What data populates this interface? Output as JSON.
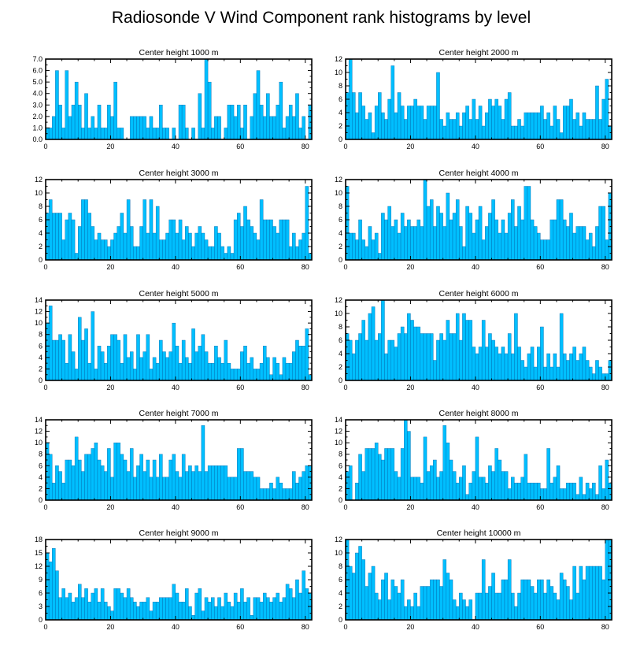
{
  "figure": {
    "title": "Radiosonde V Wind Component rank histograms by level"
  },
  "style": {
    "bar_fill": "#00bfff",
    "bar_edge": "#0066aa",
    "frame": "#000000"
  },
  "chart_data": [
    {
      "type": "bar",
      "title": "Center height 1000 m",
      "xlabel": "",
      "ylabel": "",
      "xlim": [
        0,
        82
      ],
      "ylim": [
        0,
        7
      ],
      "xticks": [
        0,
        20,
        40,
        60,
        80
      ],
      "xtick_labels": [
        "0",
        "20",
        "40",
        "60",
        "80"
      ],
      "yticks": [
        0,
        1,
        2,
        3,
        4,
        5,
        6,
        7
      ],
      "ytick_labels": [
        "0.0",
        "1.0",
        "2.0",
        "3.0",
        "4.0",
        "5.0",
        "6.0",
        "7.0"
      ],
      "values": [
        1,
        1,
        2,
        6,
        3,
        1,
        6,
        2,
        3,
        5,
        3,
        1,
        4,
        1,
        2,
        1,
        3,
        1,
        1,
        3,
        2,
        5,
        1,
        1,
        0,
        0,
        2,
        2,
        2,
        2,
        2,
        1,
        2,
        1,
        1,
        3,
        1,
        1,
        0,
        1,
        0,
        3,
        3,
        1,
        0,
        1,
        0,
        4,
        1,
        7,
        5,
        1,
        2,
        2,
        0,
        1,
        3,
        3,
        2,
        3,
        1,
        3,
        0,
        2,
        4,
        6,
        3,
        2,
        4,
        2,
        2,
        3,
        5,
        1,
        2,
        3,
        2,
        4,
        1,
        2,
        0,
        3
      ]
    },
    {
      "type": "bar",
      "title": "Center height 2000 m",
      "xlabel": "",
      "ylabel": "",
      "xlim": [
        0,
        82
      ],
      "ylim": [
        0,
        12
      ],
      "xticks": [
        0,
        20,
        40,
        60,
        80
      ],
      "xtick_labels": [
        "0",
        "20",
        "40",
        "60",
        "80"
      ],
      "yticks": [
        0,
        2,
        4,
        6,
        8,
        10,
        12
      ],
      "ytick_labels": [
        "0",
        "2",
        "4",
        "6",
        "8",
        "10",
        "12"
      ],
      "values": [
        7,
        12,
        7,
        4,
        7,
        5,
        3,
        4,
        1,
        5,
        7,
        4,
        3,
        6,
        11,
        4,
        7,
        5,
        3,
        5,
        5,
        6,
        5,
        5,
        3,
        5,
        5,
        5,
        10,
        3,
        2,
        4,
        3,
        3,
        4,
        2,
        4,
        5,
        3,
        6,
        3,
        5,
        2,
        4,
        6,
        5,
        6,
        5,
        3,
        6,
        7,
        2,
        2,
        3,
        2,
        4,
        4,
        4,
        4,
        4,
        5,
        3,
        4,
        2,
        5,
        3,
        1,
        5,
        5,
        6,
        3,
        4,
        2,
        4,
        3,
        3,
        3,
        8,
        3,
        6,
        9,
        2
      ]
    },
    {
      "type": "bar",
      "title": "Center height 3000 m",
      "xlabel": "",
      "ylabel": "",
      "xlim": [
        0,
        82
      ],
      "ylim": [
        0,
        12
      ],
      "xticks": [
        0,
        20,
        40,
        60,
        80
      ],
      "xtick_labels": [
        "0",
        "20",
        "40",
        "60",
        "80"
      ],
      "yticks": [
        0,
        2,
        4,
        6,
        8,
        10,
        12
      ],
      "ytick_labels": [
        "0",
        "2",
        "4",
        "6",
        "8",
        "10",
        "12"
      ],
      "values": [
        7,
        9,
        7,
        7,
        7,
        3,
        6,
        7,
        6,
        1,
        5,
        9,
        9,
        7,
        5,
        3,
        4,
        3,
        3,
        2,
        3,
        4,
        5,
        7,
        4,
        9,
        5,
        2,
        2,
        5,
        9,
        4,
        9,
        4,
        8,
        3,
        3,
        4,
        6,
        6,
        4,
        6,
        3,
        5,
        4,
        2,
        4,
        5,
        4,
        3,
        2,
        2,
        5,
        4,
        2,
        1,
        2,
        1,
        6,
        7,
        5,
        8,
        6,
        5,
        4,
        3,
        9,
        6,
        6,
        6,
        5,
        4,
        6,
        6,
        6,
        2,
        4,
        2,
        3,
        4,
        11,
        1
      ]
    },
    {
      "type": "bar",
      "title": "Center height 4000 m",
      "xlabel": "",
      "ylabel": "",
      "xlim": [
        0,
        82
      ],
      "ylim": [
        0,
        12
      ],
      "xticks": [
        0,
        20,
        40,
        60,
        80
      ],
      "xtick_labels": [
        "0",
        "20",
        "40",
        "60",
        "80"
      ],
      "yticks": [
        0,
        2,
        4,
        6,
        8,
        10,
        12
      ],
      "ytick_labels": [
        "0",
        "2",
        "4",
        "6",
        "8",
        "10",
        "12"
      ],
      "values": [
        11,
        4,
        4,
        3,
        6,
        3,
        2,
        5,
        3,
        4,
        1,
        7,
        6,
        8,
        5,
        6,
        4,
        7,
        5,
        6,
        5,
        5,
        6,
        5,
        12,
        8,
        9,
        5,
        8,
        7,
        5,
        10,
        6,
        7,
        9,
        5,
        2,
        8,
        7,
        4,
        6,
        8,
        3,
        5,
        7,
        9,
        6,
        4,
        6,
        4,
        7,
        9,
        5,
        8,
        6,
        11,
        11,
        6,
        5,
        4,
        3,
        3,
        3,
        6,
        6,
        9,
        9,
        6,
        5,
        7,
        4,
        5,
        5,
        5,
        3,
        4,
        2,
        5,
        8,
        8,
        3,
        10
      ]
    },
    {
      "type": "bar",
      "title": "Center height 5000 m",
      "xlabel": "",
      "ylabel": "",
      "xlim": [
        0,
        82
      ],
      "ylim": [
        0,
        14
      ],
      "xticks": [
        0,
        20,
        40,
        60,
        80
      ],
      "xtick_labels": [
        "0",
        "20",
        "40",
        "60",
        "80"
      ],
      "yticks": [
        0,
        2,
        4,
        6,
        8,
        10,
        12,
        14
      ],
      "ytick_labels": [
        "0",
        "2",
        "4",
        "6",
        "8",
        "10",
        "12",
        "14"
      ],
      "values": [
        10,
        13,
        7,
        7,
        8,
        7,
        3,
        8,
        5,
        2,
        11,
        7,
        9,
        3,
        12,
        2,
        6,
        5,
        3,
        6,
        8,
        8,
        7,
        3,
        8,
        4,
        5,
        2,
        8,
        4,
        5,
        8,
        2,
        4,
        3,
        7,
        5,
        4,
        5,
        10,
        6,
        3,
        7,
        4,
        3,
        9,
        5,
        6,
        8,
        5,
        3,
        3,
        6,
        4,
        3,
        7,
        3,
        2,
        2,
        2,
        5,
        6,
        3,
        4,
        2,
        2,
        3,
        6,
        4,
        1,
        4,
        3,
        1,
        4,
        3,
        3,
        5,
        7,
        6,
        6,
        9,
        1
      ]
    },
    {
      "type": "bar",
      "title": "Center height 6000 m",
      "xlabel": "",
      "ylabel": "",
      "xlim": [
        0,
        82
      ],
      "ylim": [
        0,
        12
      ],
      "xticks": [
        0,
        20,
        40,
        60,
        80
      ],
      "xtick_labels": [
        "0",
        "20",
        "40",
        "60",
        "80"
      ],
      "yticks": [
        0,
        2,
        4,
        6,
        8,
        10,
        12
      ],
      "ytick_labels": [
        "0",
        "2",
        "4",
        "6",
        "8",
        "10",
        "12"
      ],
      "values": [
        7,
        6,
        4,
        6,
        7,
        9,
        6,
        10,
        11,
        6,
        7,
        12,
        4,
        6,
        6,
        5,
        7,
        8,
        7,
        10,
        9,
        8,
        8,
        7,
        7,
        7,
        7,
        3,
        6,
        7,
        6,
        9,
        7,
        7,
        10,
        6,
        10,
        9,
        9,
        5,
        4,
        5,
        9,
        5,
        7,
        6,
        5,
        4,
        5,
        4,
        7,
        4,
        10,
        5,
        3,
        2,
        4,
        5,
        2,
        5,
        8,
        2,
        4,
        2,
        4,
        2,
        10,
        4,
        3,
        4,
        5,
        3,
        4,
        5,
        3,
        2,
        1,
        3,
        2,
        1,
        1,
        3
      ]
    },
    {
      "type": "bar",
      "title": "Center height 7000 m",
      "xlabel": "",
      "ylabel": "",
      "xlim": [
        0,
        82
      ],
      "ylim": [
        0,
        14
      ],
      "xticks": [
        0,
        20,
        40,
        60,
        80
      ],
      "xtick_labels": [
        "0",
        "20",
        "40",
        "60",
        "80"
      ],
      "yticks": [
        0,
        2,
        4,
        6,
        8,
        10,
        12,
        14
      ],
      "ytick_labels": [
        "0",
        "2",
        "4",
        "6",
        "8",
        "10",
        "12",
        "14"
      ],
      "values": [
        10,
        8,
        3,
        6,
        5,
        3,
        7,
        7,
        6,
        11,
        7,
        5,
        8,
        8,
        9,
        10,
        7,
        6,
        5,
        9,
        4,
        10,
        10,
        8,
        7,
        5,
        9,
        4,
        6,
        8,
        5,
        7,
        4,
        7,
        4,
        8,
        4,
        4,
        7,
        8,
        5,
        4,
        8,
        5,
        6,
        5,
        6,
        5,
        13,
        5,
        6,
        6,
        6,
        6,
        6,
        6,
        4,
        4,
        4,
        9,
        9,
        5,
        5,
        5,
        4,
        4,
        2,
        2,
        2,
        3,
        2,
        4,
        3,
        2,
        2,
        2,
        5,
        3,
        4,
        5,
        6,
        6
      ]
    },
    {
      "type": "bar",
      "title": "Center height 8000 m",
      "xlabel": "",
      "ylabel": "",
      "xlim": [
        0,
        82
      ],
      "ylim": [
        0,
        14
      ],
      "xticks": [
        0,
        20,
        40,
        60,
        80
      ],
      "xtick_labels": [
        "0",
        "20",
        "40",
        "60",
        "80"
      ],
      "yticks": [
        0,
        2,
        4,
        6,
        8,
        10,
        12,
        14
      ],
      "ytick_labels": [
        "0",
        "2",
        "4",
        "6",
        "8",
        "10",
        "12",
        "14"
      ],
      "values": [
        5,
        6,
        0,
        3,
        8,
        5,
        9,
        9,
        9,
        10,
        8,
        7,
        9,
        9,
        9,
        5,
        4,
        9,
        14,
        12,
        4,
        4,
        4,
        3,
        11,
        5,
        6,
        7,
        4,
        5,
        13,
        10,
        7,
        5,
        3,
        4,
        6,
        1,
        3,
        5,
        11,
        4,
        4,
        3,
        6,
        5,
        9,
        7,
        5,
        5,
        2,
        4,
        3,
        3,
        4,
        8,
        3,
        3,
        3,
        3,
        2,
        2,
        9,
        3,
        4,
        6,
        2,
        2,
        3,
        3,
        3,
        1,
        4,
        1,
        3,
        2,
        3,
        1,
        6,
        2,
        7,
        3
      ]
    },
    {
      "type": "bar",
      "title": "Center height 9000 m",
      "xlabel": "",
      "ylabel": "",
      "xlim": [
        0,
        82
      ],
      "ylim": [
        0,
        18
      ],
      "xticks": [
        0,
        20,
        40,
        60,
        80
      ],
      "xtick_labels": [
        "0",
        "20",
        "40",
        "60",
        "80"
      ],
      "yticks": [
        0,
        3,
        6,
        9,
        12,
        15,
        18
      ],
      "ytick_labels": [
        "0",
        "3",
        "6",
        "9",
        "12",
        "15",
        "18"
      ],
      "values": [
        15,
        13,
        16,
        11,
        5,
        7,
        5,
        6,
        4,
        5,
        8,
        5,
        7,
        4,
        6,
        7,
        4,
        7,
        4,
        3,
        2,
        7,
        7,
        6,
        5,
        7,
        5,
        4,
        3,
        4,
        4,
        5,
        2,
        4,
        4,
        5,
        5,
        5,
        5,
        8,
        6,
        4,
        4,
        7,
        3,
        1,
        6,
        7,
        2,
        5,
        4,
        5,
        3,
        5,
        3,
        6,
        4,
        3,
        6,
        4,
        7,
        4,
        5,
        1,
        5,
        5,
        4,
        6,
        5,
        4,
        5,
        6,
        4,
        5,
        8,
        7,
        5,
        9,
        6,
        11,
        7,
        6
      ]
    },
    {
      "type": "bar",
      "title": "Center height 10000 m",
      "xlabel": "",
      "ylabel": "",
      "xlim": [
        0,
        82
      ],
      "ylim": [
        0,
        12
      ],
      "xticks": [
        0,
        20,
        40,
        60,
        80
      ],
      "xtick_labels": [
        "0",
        "20",
        "40",
        "60",
        "80"
      ],
      "yticks": [
        0,
        2,
        4,
        6,
        8,
        10,
        12
      ],
      "ytick_labels": [
        "0",
        "2",
        "4",
        "6",
        "8",
        "10",
        "12"
      ],
      "values": [
        12,
        8,
        7,
        10,
        11,
        9,
        5,
        7,
        8,
        4,
        3,
        6,
        7,
        3,
        6,
        5,
        4,
        6,
        2,
        3,
        2,
        4,
        2,
        5,
        5,
        5,
        6,
        6,
        6,
        5,
        9,
        7,
        6,
        3,
        2,
        4,
        3,
        2,
        3,
        0,
        4,
        4,
        9,
        4,
        5,
        7,
        4,
        4,
        6,
        6,
        9,
        4,
        2,
        4,
        6,
        6,
        6,
        5,
        4,
        6,
        6,
        4,
        6,
        5,
        4,
        3,
        7,
        6,
        5,
        3,
        8,
        4,
        8,
        6,
        8,
        8,
        8,
        8,
        8,
        6,
        12,
        12
      ]
    }
  ]
}
